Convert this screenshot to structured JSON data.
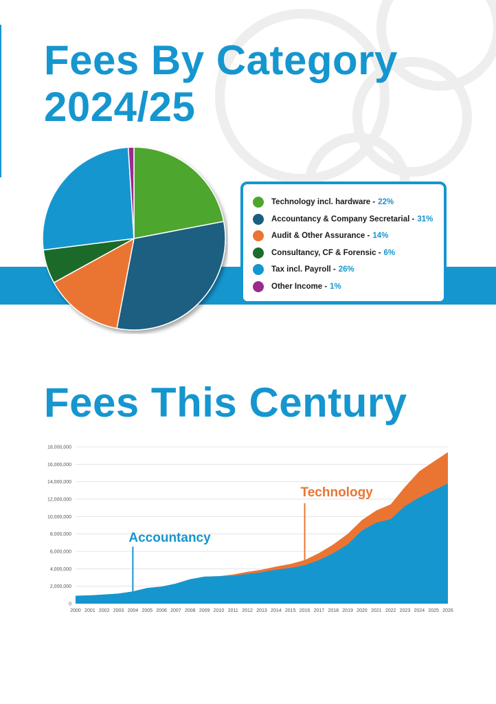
{
  "page": {
    "title_1_line_1": "Fees By Category",
    "title_1_line_2": "2024/25",
    "title_2": "Fees This Century",
    "accent_color": "#1596cf"
  },
  "chart_data": [
    {
      "type": "pie",
      "title": "Fees By Category 2024/25",
      "slices": [
        {
          "label": "Technology incl. hardware",
          "value": 22,
          "display": "22%",
          "color": "#4ea62d"
        },
        {
          "label": "Accountancy & Company Secretarial",
          "value": 31,
          "display": "31%",
          "color": "#1b5f80"
        },
        {
          "label": "Audit & Other Assurance",
          "value": 14,
          "display": "14%",
          "color": "#ea7533"
        },
        {
          "label": "Consultancy, CF & Forensic",
          "value": 6,
          "display": "6%",
          "color": "#1e6b2c"
        },
        {
          "label": "Tax incl. Payroll",
          "value": 26,
          "display": "26%",
          "color": "#1596cf"
        },
        {
          "label": "Other Income",
          "value": 1,
          "display": "1%",
          "color": "#9a2a8f"
        }
      ],
      "legend_position": "right"
    },
    {
      "type": "area",
      "title": "Fees This Century",
      "x": [
        "2000",
        "2001",
        "2002",
        "2003",
        "2004",
        "2005",
        "2006",
        "2007",
        "2008",
        "2009",
        "2010",
        "2011",
        "2012",
        "2013",
        "2014",
        "2015",
        "2016",
        "2017",
        "2018",
        "2019",
        "2020",
        "2021",
        "2022",
        "2023",
        "2024",
        "2025",
        "2026"
      ],
      "series": [
        {
          "name": "Accountancy",
          "color": "#1596cf",
          "values": [
            900000,
            950000,
            1050000,
            1150000,
            1400000,
            1800000,
            1950000,
            2300000,
            2800000,
            3100000,
            3150000,
            3200000,
            3400000,
            3600000,
            3900000,
            4100000,
            4400000,
            5000000,
            5800000,
            6800000,
            8400000,
            9300000,
            9700000,
            11200000,
            12200000,
            13000000,
            13800000
          ]
        },
        {
          "name": "Technology",
          "color": "#ea7533",
          "values": [
            0,
            0,
            0,
            0,
            0,
            0,
            0,
            0,
            0,
            0,
            0,
            150000,
            250000,
            300000,
            350000,
            450000,
            600000,
            800000,
            1000000,
            1200000,
            1200000,
            1400000,
            1700000,
            2200000,
            3000000,
            3300000,
            3600000
          ]
        }
      ],
      "annotations": [
        {
          "text": "Accountancy",
          "x": "2004",
          "color": "#1596cf"
        },
        {
          "text": "Technology",
          "x": "2016",
          "color": "#ea7533"
        }
      ],
      "y_ticks": [
        "0",
        "2,000,000",
        "4,000,000",
        "6,000,000",
        "8,000,000",
        "10,000,000",
        "12,000,000",
        "14,000,000",
        "16,000,000",
        "18,000,000"
      ],
      "ylim": [
        0,
        18000000
      ],
      "grid": true,
      "stacked": true
    }
  ]
}
